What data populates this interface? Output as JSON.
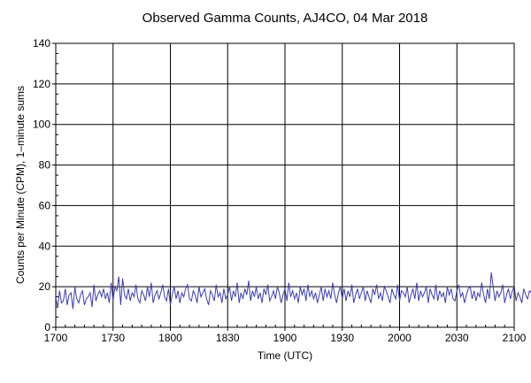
{
  "chart_data": {
    "type": "line",
    "title": "Observed Gamma Counts, AJ4CO, 04 Mar 2018",
    "xlabel": "Time (UTC)",
    "ylabel": "Counts per Minute (CPM), 1–minute sums",
    "xlim": [
      0,
      240
    ],
    "ylim": [
      0,
      140
    ],
    "x_ticks": [
      {
        "minutes": 0,
        "label": "1700"
      },
      {
        "minutes": 30,
        "label": "1730"
      },
      {
        "minutes": 60,
        "label": "1800"
      },
      {
        "minutes": 90,
        "label": "1830"
      },
      {
        "minutes": 120,
        "label": "1900"
      },
      {
        "minutes": 150,
        "label": "1930"
      },
      {
        "minutes": 180,
        "label": "2000"
      },
      {
        "minutes": 210,
        "label": "2030"
      },
      {
        "minutes": 240,
        "label": "2100"
      }
    ],
    "y_ticks": [
      0,
      20,
      40,
      60,
      80,
      100,
      120,
      140
    ],
    "grid": true,
    "line_color": "#3c3cb4",
    "series": [
      {
        "values": [
          14,
          10,
          18,
          12,
          13,
          19,
          11,
          16,
          17,
          9,
          20,
          14,
          12,
          16,
          18,
          11,
          14,
          15,
          17,
          10,
          21,
          13,
          16,
          18,
          15,
          19,
          14,
          17,
          12,
          22,
          13,
          20,
          18,
          25,
          11,
          24,
          16,
          14,
          19,
          13,
          17,
          15,
          21,
          14,
          12,
          18,
          16,
          13,
          20,
          15,
          22,
          12,
          16,
          18,
          14,
          17,
          21,
          15,
          13,
          19,
          11,
          16,
          20,
          14,
          18,
          12,
          17,
          15,
          19,
          21,
          14,
          13,
          18,
          16,
          12,
          20,
          15,
          17,
          19,
          14,
          11,
          18,
          16,
          13,
          21,
          15,
          17,
          12,
          19,
          14,
          16,
          20,
          13,
          18,
          15,
          22,
          12,
          17,
          14,
          19,
          16,
          23,
          13,
          18,
          15,
          20,
          14,
          17,
          12,
          19,
          16,
          21,
          13,
          15,
          18,
          14,
          20,
          17,
          12,
          16,
          19,
          13,
          22,
          15,
          18,
          14,
          17,
          12,
          20,
          16,
          19,
          13,
          21,
          15,
          18,
          14,
          17,
          12,
          16,
          20,
          13,
          19,
          15,
          18,
          14,
          22,
          16,
          12,
          17,
          20,
          14,
          19,
          13,
          18,
          15,
          21,
          12,
          16,
          19,
          14,
          17,
          20,
          13,
          18,
          15,
          12,
          19,
          16,
          21,
          14,
          17,
          13,
          20,
          18,
          15,
          12,
          19,
          16,
          14,
          21,
          13,
          18,
          17,
          15,
          20,
          12,
          16,
          19,
          14,
          22,
          13,
          18,
          15,
          17,
          20,
          12,
          19,
          16,
          14,
          21,
          13,
          18,
          15,
          17,
          12,
          20,
          16,
          19,
          14,
          13,
          18,
          21,
          15,
          17,
          12,
          16,
          19,
          20,
          14,
          18,
          13,
          17,
          15,
          22,
          16,
          12,
          19,
          14,
          27,
          20,
          13,
          18,
          15,
          17,
          21,
          12,
          16,
          19,
          14,
          18,
          20,
          13,
          17,
          15,
          12,
          19,
          16,
          14,
          18,
          17
        ]
      }
    ]
  }
}
